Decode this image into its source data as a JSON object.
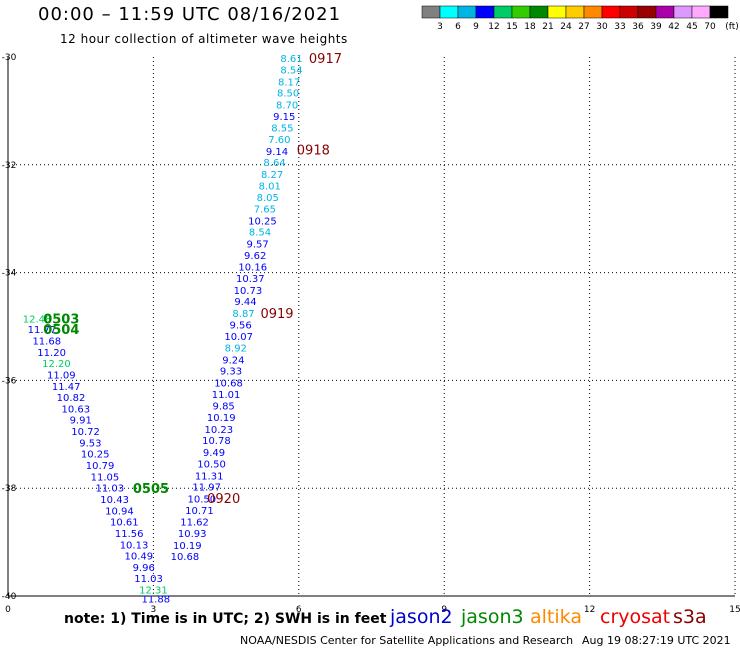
{
  "header": {
    "title": "00:00 – 11:59 UTC 08/16/2021",
    "subtitle": "12 hour collection of altimeter wave heights"
  },
  "footer": {
    "note": "note:  1) Time is in UTC;  2) SWH is in feet",
    "credit": "NOAA/NESDIS Center for Satellite Applications and Research",
    "timestamp": "Aug 19 08:27:19 UTC 2021"
  },
  "colorbar": {
    "unit": "(ft)",
    "colors": [
      "#808080",
      "#00ffff",
      "#00b4e6",
      "#0000ff",
      "#00cc66",
      "#33cc00",
      "#008800",
      "#ffff00",
      "#ffcc00",
      "#ff8800",
      "#ff0000",
      "#cc0000",
      "#990000",
      "#aa00aa",
      "#dd99ff",
      "#ffaaff",
      "#000000"
    ],
    "labels": [
      "3",
      "6",
      "9",
      "12",
      "15",
      "18",
      "21",
      "24",
      "27",
      "30",
      "33",
      "36",
      "39",
      "42",
      "45",
      "70"
    ]
  },
  "missions": [
    {
      "name": "jason2",
      "color": "#0000cc"
    },
    {
      "name": "jason3",
      "color": "#008800"
    },
    {
      "name": "altika",
      "color": "#ff8800"
    },
    {
      "name": "cryosat",
      "color": "#ee0000"
    },
    {
      "name": "s3a",
      "color": "#880000"
    }
  ],
  "chart_data": {
    "type": "scatter",
    "title": "00:00 – 11:59 UTC 08/16/2021",
    "subtitle": "12 hour collection of altimeter wave heights",
    "xlim": [
      0,
      15
    ],
    "ylim": [
      -40,
      -30
    ],
    "xticks": [
      "0",
      "3",
      "6",
      "9",
      "12",
      "15"
    ],
    "yticks": [
      "-30",
      "-32",
      "-34",
      "-36",
      "-38",
      "-40"
    ],
    "grid": true,
    "series": [
      {
        "name": "s3a",
        "color_key": "#880000",
        "points": [
          {
            "x": 5.85,
            "y": -30.02,
            "v": "8.61"
          },
          {
            "x": 5.85,
            "y": -30.23,
            "v": "8.54"
          },
          {
            "x": 5.8,
            "y": -30.45,
            "v": "8.17"
          },
          {
            "x": 5.78,
            "y": -30.66,
            "v": "8.50"
          },
          {
            "x": 5.76,
            "y": -30.88,
            "v": "8.70"
          },
          {
            "x": 5.7,
            "y": -31.09,
            "v": "9.15"
          },
          {
            "x": 5.66,
            "y": -31.31,
            "v": "8.55"
          },
          {
            "x": 5.6,
            "y": -31.52,
            "v": "7.60"
          },
          {
            "x": 5.55,
            "y": -31.74,
            "v": "9.14"
          },
          {
            "x": 5.5,
            "y": -31.95,
            "v": "8.64"
          },
          {
            "x": 5.45,
            "y": -32.17,
            "v": "8.27"
          },
          {
            "x": 5.4,
            "y": -32.38,
            "v": "8.01"
          },
          {
            "x": 5.36,
            "y": -32.6,
            "v": "8.05"
          },
          {
            "x": 5.3,
            "y": -32.81,
            "v": "7.65"
          },
          {
            "x": 5.25,
            "y": -33.03,
            "v": "10.25"
          },
          {
            "x": 5.2,
            "y": -33.24,
            "v": "8.54"
          },
          {
            "x": 5.15,
            "y": -33.46,
            "v": "9.57"
          },
          {
            "x": 5.1,
            "y": -33.67,
            "v": "9.62"
          },
          {
            "x": 5.05,
            "y": -33.89,
            "v": "10.16"
          },
          {
            "x": 5.0,
            "y": -34.1,
            "v": "10.37"
          },
          {
            "x": 4.95,
            "y": -34.32,
            "v": "10.73"
          },
          {
            "x": 4.9,
            "y": -34.53,
            "v": "9.44"
          },
          {
            "x": 4.86,
            "y": -34.75,
            "v": "8.87"
          },
          {
            "x": 4.8,
            "y": -34.96,
            "v": "9.56"
          },
          {
            "x": 4.76,
            "y": -35.18,
            "v": "10.07"
          },
          {
            "x": 4.7,
            "y": -35.39,
            "v": "8.92"
          },
          {
            "x": 4.65,
            "y": -35.61,
            "v": "9.24"
          },
          {
            "x": 4.6,
            "y": -35.82,
            "v": "9.33"
          },
          {
            "x": 4.55,
            "y": -36.04,
            "v": "10.68"
          },
          {
            "x": 4.5,
            "y": -36.25,
            "v": "11.01"
          },
          {
            "x": 4.45,
            "y": -36.47,
            "v": "9.85"
          },
          {
            "x": 4.4,
            "y": -36.68,
            "v": "10.19"
          },
          {
            "x": 4.35,
            "y": -36.9,
            "v": "10.23"
          },
          {
            "x": 4.3,
            "y": -37.11,
            "v": "10.78"
          },
          {
            "x": 4.25,
            "y": -37.33,
            "v": "9.49"
          },
          {
            "x": 4.2,
            "y": -37.54,
            "v": "10.50"
          },
          {
            "x": 4.15,
            "y": -37.76,
            "v": "11.31"
          },
          {
            "x": 4.1,
            "y": -37.97,
            "v": "11.97"
          },
          {
            "x": 4.0,
            "y": -38.19,
            "v": "10.50"
          },
          {
            "x": 3.95,
            "y": -38.4,
            "v": "10.71"
          },
          {
            "x": 3.85,
            "y": -38.62,
            "v": "11.62"
          },
          {
            "x": 3.8,
            "y": -38.83,
            "v": "10.93"
          },
          {
            "x": 3.7,
            "y": -39.05,
            "v": "10.19"
          },
          {
            "x": 3.65,
            "y": -39.26,
            "v": "10.68"
          }
        ]
      },
      {
        "name": "jason3",
        "color_key": "#008800",
        "points": [
          {
            "x": 0.6,
            "y": -34.85,
            "v": "12.48"
          },
          {
            "x": 0.7,
            "y": -35.05,
            "v": "11.77"
          },
          {
            "x": 0.8,
            "y": -35.26,
            "v": "11.68"
          },
          {
            "x": 0.9,
            "y": -35.47,
            "v": "11.20"
          },
          {
            "x": 1.0,
            "y": -35.68,
            "v": "12.20"
          },
          {
            "x": 1.1,
            "y": -35.89,
            "v": "11.09"
          },
          {
            "x": 1.2,
            "y": -36.1,
            "v": "11.47"
          },
          {
            "x": 1.3,
            "y": -36.31,
            "v": "10.82"
          },
          {
            "x": 1.4,
            "y": -36.52,
            "v": "10.63"
          },
          {
            "x": 1.5,
            "y": -36.73,
            "v": "9.91"
          },
          {
            "x": 1.6,
            "y": -36.94,
            "v": "10.72"
          },
          {
            "x": 1.7,
            "y": -37.15,
            "v": "9.53"
          },
          {
            "x": 1.8,
            "y": -37.36,
            "v": "10.25"
          },
          {
            "x": 1.9,
            "y": -37.57,
            "v": "10.79"
          },
          {
            "x": 2.0,
            "y": -37.78,
            "v": "11.05"
          },
          {
            "x": 2.1,
            "y": -37.99,
            "v": "11.03"
          },
          {
            "x": 2.2,
            "y": -38.2,
            "v": "10.43"
          },
          {
            "x": 2.3,
            "y": -38.41,
            "v": "10.94"
          },
          {
            "x": 2.4,
            "y": -38.62,
            "v": "10.61"
          },
          {
            "x": 2.5,
            "y": -38.83,
            "v": "11.56"
          },
          {
            "x": 2.6,
            "y": -39.04,
            "v": "10.13"
          },
          {
            "x": 2.7,
            "y": -39.25,
            "v": "10.49"
          },
          {
            "x": 2.8,
            "y": -39.46,
            "v": "9.96"
          },
          {
            "x": 2.9,
            "y": -39.67,
            "v": "11.03"
          },
          {
            "x": 3.0,
            "y": -39.88,
            "v": "12.31"
          },
          {
            "x": 3.05,
            "y": -40.05,
            "v": "11.88"
          }
        ]
      }
    ],
    "annotations": [
      {
        "text": "0917",
        "x": 6.55,
        "y": -30.02,
        "color": "#880000"
      },
      {
        "text": "0918",
        "x": 6.3,
        "y": -31.72,
        "color": "#880000"
      },
      {
        "text": "0919",
        "x": 5.55,
        "y": -34.75,
        "color": "#880000"
      },
      {
        "text": "0920",
        "x": 4.45,
        "y": -38.18,
        "color": "#880000"
      },
      {
        "text": "0503",
        "x": 1.1,
        "y": -34.85,
        "color": "#008800"
      },
      {
        "text": "0504",
        "x": 1.1,
        "y": -35.05,
        "color": "#008800"
      },
      {
        "text": "0505",
        "x": 2.95,
        "y": -38.0,
        "color": "#008800"
      }
    ]
  }
}
